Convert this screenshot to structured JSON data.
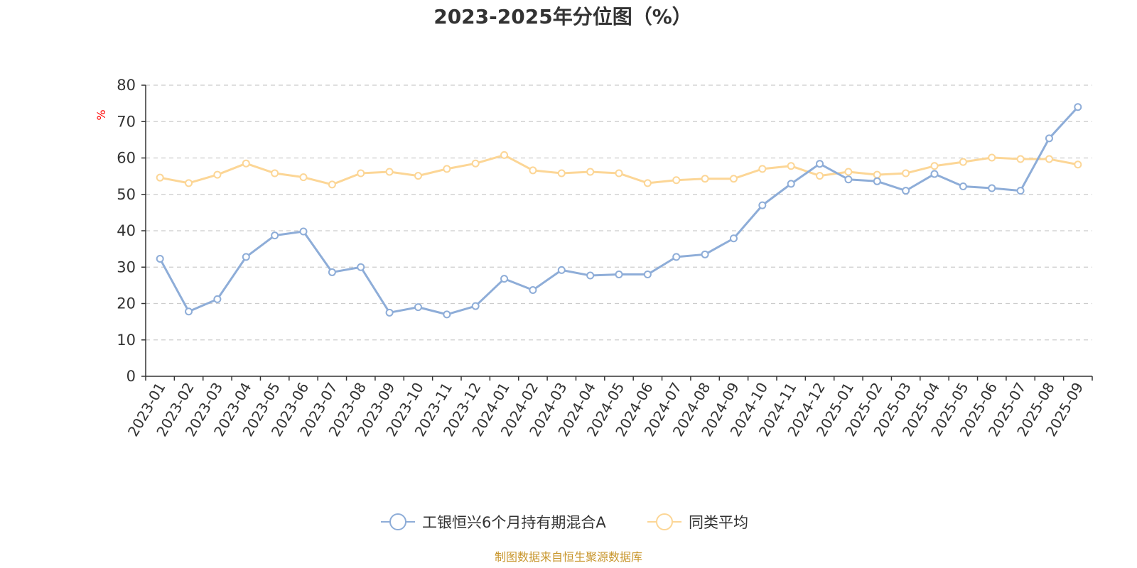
{
  "colors": {
    "series1": "#8eadd8",
    "series2": "#fcd696",
    "grid": "#cccccc",
    "axis": "#333333",
    "unit": "#ff0000",
    "source": "#c8962c"
  },
  "source_text": "制图数据来自恒生聚源数据库",
  "chart_data": {
    "type": "line",
    "title": "2023-2025年分位图（%）",
    "ylabel": "%",
    "xlabel": "",
    "ylim": [
      0,
      80
    ],
    "y_ticks": [
      "0",
      "10",
      "20",
      "30",
      "40",
      "50",
      "60",
      "70",
      "80"
    ],
    "grid": true,
    "legend_position": "bottom",
    "categories": [
      "2023-01",
      "2023-02",
      "2023-03",
      "2023-04",
      "2023-05",
      "2023-06",
      "2023-07",
      "2023-08",
      "2023-09",
      "2023-10",
      "2023-11",
      "2023-12",
      "2024-01",
      "2024-02",
      "2024-03",
      "2024-04",
      "2024-05",
      "2024-06",
      "2024-07",
      "2024-08",
      "2024-09",
      "2024-10",
      "2024-11",
      "2024-12",
      "2025-01",
      "2025-02",
      "2025-03",
      "2025-04",
      "2025-05",
      "2025-06",
      "2025-07",
      "2025-08",
      "2025-09"
    ],
    "series": [
      {
        "name": "工银恒兴6个月持有期混合A",
        "values": [
          32.3,
          17.8,
          21.2,
          32.8,
          38.7,
          39.8,
          28.6,
          30.0,
          17.5,
          19.0,
          17.0,
          19.3,
          26.8,
          23.7,
          29.2,
          27.7,
          28.0,
          28.0,
          32.8,
          33.5,
          37.9,
          47.0,
          52.9,
          58.4,
          54.1,
          53.6,
          51.0,
          55.6,
          52.2,
          51.7,
          51.0,
          65.4,
          74.0
        ]
      },
      {
        "name": "同类平均",
        "values": [
          54.6,
          53.1,
          55.4,
          58.5,
          55.8,
          54.7,
          52.7,
          55.8,
          56.2,
          55.1,
          57.0,
          58.5,
          60.8,
          56.6,
          55.8,
          56.2,
          55.8,
          53.1,
          53.9,
          54.3,
          54.3,
          57.0,
          57.8,
          55.1,
          56.2,
          55.4,
          55.8,
          57.8,
          58.9,
          60.1,
          59.7,
          59.7,
          58.2
        ]
      }
    ]
  }
}
